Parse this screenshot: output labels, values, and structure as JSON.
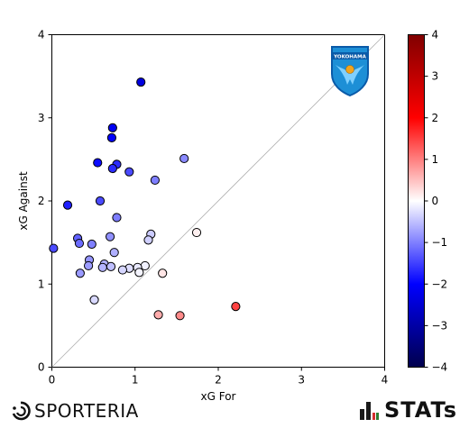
{
  "chart_data": {
    "type": "scatter",
    "title": "",
    "xlabel": "xG For",
    "ylabel": "xG Against",
    "xlim": [
      0,
      4
    ],
    "ylim": [
      0,
      4
    ],
    "xticks": [
      0,
      1,
      2,
      3,
      4
    ],
    "yticks": [
      0,
      1,
      2,
      3,
      4
    ],
    "grid": false,
    "diagonal_reference_line": true,
    "color_value": "xG For minus xG Against",
    "colorbar": {
      "range": [
        -4,
        4
      ],
      "ticks": [
        4,
        3,
        2,
        1,
        0,
        -1,
        -2,
        -3,
        -4
      ],
      "colormap": "seismic",
      "colors": [
        "#00004c",
        "#0000ff",
        "#ffffff",
        "#ff0000",
        "#800000"
      ]
    },
    "points": [
      {
        "x": 1.07,
        "y": 3.43
      },
      {
        "x": 0.73,
        "y": 2.88
      },
      {
        "x": 0.72,
        "y": 2.76
      },
      {
        "x": 1.59,
        "y": 2.51
      },
      {
        "x": 0.55,
        "y": 2.46
      },
      {
        "x": 0.78,
        "y": 2.44
      },
      {
        "x": 0.73,
        "y": 2.39
      },
      {
        "x": 0.93,
        "y": 2.35
      },
      {
        "x": 1.24,
        "y": 2.25
      },
      {
        "x": 0.58,
        "y": 2.0
      },
      {
        "x": 0.19,
        "y": 1.95
      },
      {
        "x": 0.78,
        "y": 1.8
      },
      {
        "x": 1.74,
        "y": 1.62
      },
      {
        "x": 1.19,
        "y": 1.6
      },
      {
        "x": 0.7,
        "y": 1.57
      },
      {
        "x": 0.31,
        "y": 1.55
      },
      {
        "x": 1.16,
        "y": 1.53
      },
      {
        "x": 0.33,
        "y": 1.49
      },
      {
        "x": 0.48,
        "y": 1.48
      },
      {
        "x": 0.02,
        "y": 1.43
      },
      {
        "x": 0.75,
        "y": 1.38
      },
      {
        "x": 0.45,
        "y": 1.29
      },
      {
        "x": 0.63,
        "y": 1.24
      },
      {
        "x": 0.44,
        "y": 1.22
      },
      {
        "x": 1.12,
        "y": 1.22
      },
      {
        "x": 0.71,
        "y": 1.21
      },
      {
        "x": 0.61,
        "y": 1.2
      },
      {
        "x": 1.03,
        "y": 1.2
      },
      {
        "x": 0.93,
        "y": 1.19
      },
      {
        "x": 0.85,
        "y": 1.17
      },
      {
        "x": 1.05,
        "y": 1.14
      },
      {
        "x": 0.34,
        "y": 1.13
      },
      {
        "x": 1.33,
        "y": 1.13
      },
      {
        "x": 0.51,
        "y": 0.81
      },
      {
        "x": 2.21,
        "y": 0.73
      },
      {
        "x": 1.28,
        "y": 0.63
      },
      {
        "x": 1.54,
        "y": 0.62
      }
    ]
  },
  "logo": {
    "team_badge_text": "YOKOHAMA",
    "team_badge_colors": [
      "#1d8fd6",
      "#0a5aa8",
      "#f2a41c"
    ],
    "icon": "team-crest"
  },
  "footer": {
    "left_brand": "SPORTERIA",
    "left_icon": "sporteria-mark-icon",
    "right_brand": "STATs",
    "right_icon": "stats-bars-icon",
    "right_icon_colors": [
      "#1a1a1a",
      "#1a1a1a",
      "#d32f2f",
      "#2e7d32"
    ]
  }
}
